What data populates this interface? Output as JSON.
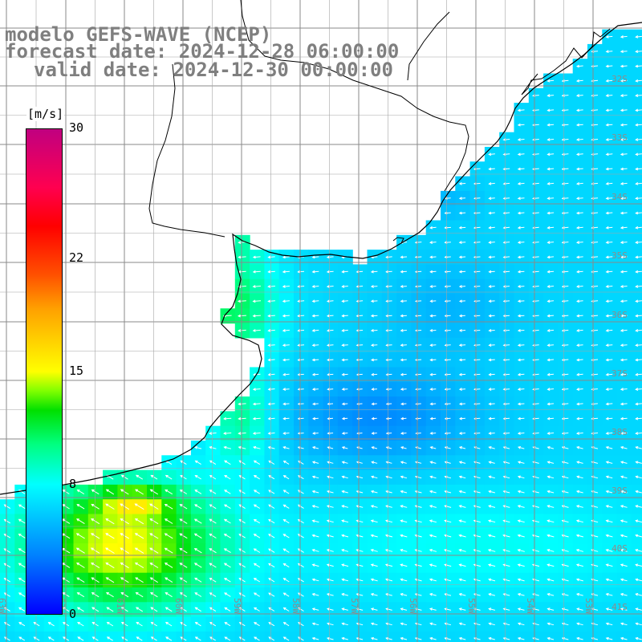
{
  "title": {
    "line1": "modelo GEFS-WAVE (NCEP)",
    "line2": "forecast date: 2024-12-28 06:00:00",
    "line3": "valid date: 2024-12-30 00:00:00"
  },
  "colorbar": {
    "unit": "[m/s]",
    "min": 0,
    "max": 30,
    "ticks": [
      {
        "value": 30,
        "label": "30"
      },
      {
        "value": 22,
        "label": "22"
      },
      {
        "value": 15,
        "label": "15"
      },
      {
        "value": 8,
        "label": "8"
      },
      {
        "value": 0,
        "label": "0"
      }
    ]
  },
  "grid": {
    "lat_labels": [
      "32S",
      "33S",
      "34S",
      "35S",
      "36S",
      "37S",
      "38S",
      "39S",
      "40S",
      "41S"
    ],
    "lon_labels": [
      "63W",
      "62W",
      "61W",
      "60W",
      "59W",
      "58W",
      "57W",
      "56W",
      "55W",
      "54W",
      "53W"
    ]
  },
  "colors": {
    "land": "#ffffff",
    "coast": "#000000",
    "grid_line": "#8a8a8a",
    "title_text": "#7f7f7f",
    "wind_arrow": "#ffffff"
  },
  "wind_field": {
    "predominant_direction": "from east / northeast",
    "max_speed_region": "southwest near coast (~14-16 m/s)",
    "typical_speed_offshore": "5-8 m/s"
  }
}
